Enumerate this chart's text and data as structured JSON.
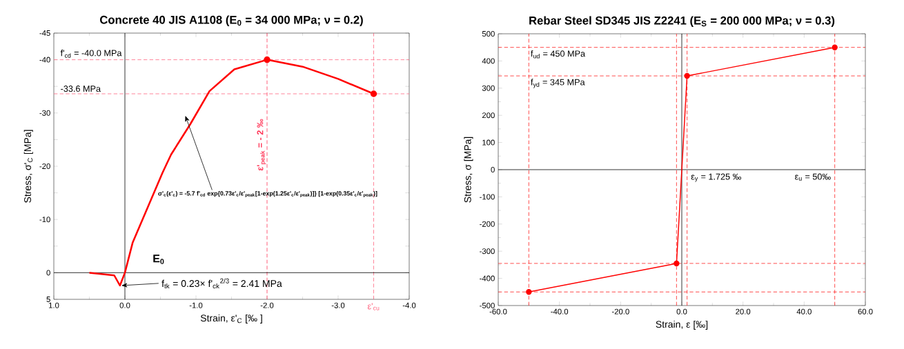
{
  "chart_data": [
    {
      "type": "line",
      "title": "Concrete 40 JIS A1108 (E$_{0}$ = 34 000 MPa; ν = 0.2)",
      "xlabel": "Strain, ε'$_{C}$  [‰ ]",
      "ylabel": "Stress, σ'$_{C}$ [MPa]",
      "xlim": [
        1,
        -4
      ],
      "ylim": [
        5,
        -45
      ],
      "xticks": [
        {
          "value": 1,
          "label": "1.0"
        },
        {
          "value": 0,
          "label": "0.0"
        },
        {
          "value": -1,
          "label": "-1.0"
        },
        {
          "value": -2,
          "label": "-2.0"
        },
        {
          "value": -3,
          "label": "-3.0"
        },
        {
          "value": -4,
          "label": "-4.0"
        }
      ],
      "yticks": [
        5,
        0,
        {
          "value": -5,
          "label": null
        },
        -10,
        {
          "value": -15,
          "label": null
        },
        -20,
        {
          "value": -25,
          "label": null
        },
        -30,
        {
          "value": -35,
          "label": null
        },
        -40,
        -45
      ],
      "series": [
        {
          "color": "#ff0000",
          "x": [
            0.5,
            0.15,
            0.07,
            0,
            -0.11,
            -0.53,
            -0.65,
            -0.92,
            -1.19,
            -1.54,
            -2.0,
            -2.5,
            -3.0,
            -3.5
          ],
          "values": [
            0,
            0.5,
            2.41,
            0,
            -5.7,
            -18.8,
            -22.2,
            -27.9,
            -34.1,
            -38.2,
            -40,
            -38.7,
            -36.4,
            -33.6
          ],
          "marker": "none"
        },
        {
          "type": "scatter",
          "color": "#ff0000",
          "x": [
            -2,
            -3.5
          ],
          "values": [
            -40,
            -33.6
          ],
          "marker": "circle"
        }
      ],
      "ref_lines": [
        {
          "axis": "y",
          "value": -40,
          "label": "f'$_{cd}$ = -40.0 MPa",
          "color": "#ff6680",
          "line_style": "dashed"
        },
        {
          "axis": "y",
          "value": -33.6,
          "label": "-33.6 MPa",
          "color": "#ff6680",
          "line_style": "dashed"
        },
        {
          "axis": "x",
          "value": -2,
          "label": "ε'$_{peak}$ = - 2 ‰",
          "color": "#ff3355",
          "line_style": "dashed"
        },
        {
          "axis": "x",
          "value": -3.5,
          "label": "ε'$_{cu}$",
          "color": "#ff6680",
          "line_style": "dashed"
        },
        {
          "axis": "x",
          "value": 0,
          "color": "#000000",
          "line_style": "solid"
        },
        {
          "axis": "y",
          "value": 0,
          "color": "#000000",
          "line_style": "solid"
        }
      ],
      "annotations": [
        "σ'$_{c}$(ε'$_{c}$) = -5.7 f'$_{cd}$ exp{0.73ε'$_{c}$/ε'$_{peak}$[1-exp(1.25ε'$_{c}$/ε'$_{peak}$)]} [1-exp(0.35ε'$_{c}$/ε'$_{peak}$)]",
        "E$_{0}$",
        {
          "text": "f$_{tk}$ = 0.23× f'$_{ck}$$^{2/3}$ = 2.41 MPa",
          "x": 0.05,
          "y": 2.41
        }
      ]
    },
    {
      "type": "line",
      "title": "Rebar Steel SD345 JIS Z2241 (E$_{S}$ = 200 000 MPa; ν = 0.3)",
      "xlabel": "Strain, ε [‰]",
      "ylabel": "Stress, σ [MPa]",
      "xlim": [
        -60,
        60
      ],
      "ylim": [
        -500,
        500
      ],
      "xticks": [
        {
          "value": -60,
          "label": "-60.0"
        },
        {
          "value": -40,
          "label": "-40.0"
        },
        {
          "value": -20,
          "label": "-20.0"
        },
        {
          "value": 0,
          "label": "0.0"
        },
        {
          "value": 20,
          "label": "20.0"
        },
        {
          "value": 40,
          "label": "40.0"
        },
        {
          "value": 60,
          "label": "60.0"
        }
      ],
      "yticks": [
        -500,
        -400,
        -300,
        -200,
        -100,
        0,
        100,
        200,
        300,
        400,
        500
      ],
      "series": [
        {
          "color": "#ff0000",
          "x": [
            -50,
            -1.725,
            1.725,
            50
          ],
          "values": [
            -450,
            -345,
            345,
            450
          ],
          "marker": "circle"
        }
      ],
      "ref_lines": [
        {
          "axis": "y",
          "value": 450,
          "label": "f$_{ud}$ = 450 MPa",
          "color": "#ff2020",
          "line_style": "dashed"
        },
        {
          "axis": "y",
          "value": 345,
          "label": "f$_{yd}$ = 345 MPa",
          "color": "#ff2020",
          "line_style": "dashed"
        },
        {
          "axis": "y",
          "value": -345,
          "color": "#ff2020",
          "line_style": "dashed"
        },
        {
          "axis": "y",
          "value": -450,
          "color": "#ff2020",
          "line_style": "dashed"
        },
        {
          "axis": "x",
          "value": 1.725,
          "label": "ε$_{y}$ = 1.725 ‰",
          "color": "#ff2020",
          "line_style": "dashed"
        },
        {
          "axis": "x",
          "value": 50,
          "label": "ε$_{u}$ = 50‰",
          "color": "#ff2020",
          "line_style": "dashed"
        },
        {
          "axis": "x",
          "value": -1.725,
          "color": "#ff2020",
          "line_style": "dashed"
        },
        {
          "axis": "x",
          "value": -50,
          "color": "#ff2020",
          "line_style": "dashed"
        },
        {
          "axis": "x",
          "value": 0,
          "color": "#000000",
          "line_style": "solid"
        },
        {
          "axis": "y",
          "value": 0,
          "color": "#000000",
          "line_style": "solid"
        }
      ]
    }
  ]
}
